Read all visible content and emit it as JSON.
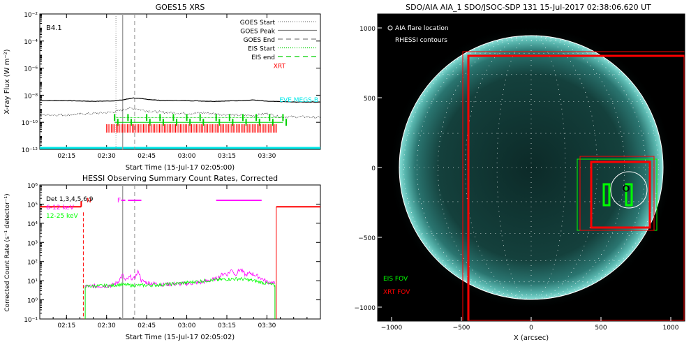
{
  "chart_data": [
    {
      "type": "line",
      "title": "GOES15 XRS",
      "xlabel": "Start Time (15-Jul-17 02:05:00)",
      "ylabel": "X-ray Flux (W m⁻²)",
      "y_scale": "log",
      "ylim_exponents": [
        -12,
        -2
      ],
      "y_ticks": [
        -12,
        -10,
        -8,
        -6,
        -4,
        -2
      ],
      "x_range_minutes": [
        0,
        105
      ],
      "x_ticks": [
        {
          "label": "02:15",
          "m": 10
        },
        {
          "label": "02:30",
          "m": 25
        },
        {
          "label": "02:45",
          "m": 40
        },
        {
          "label": "03:00",
          "m": 55
        },
        {
          "label": "03:15",
          "m": 70
        },
        {
          "label": "03:30",
          "m": 85
        }
      ],
      "annotation": "B4.1",
      "legend": [
        {
          "label": "GOES Start",
          "color": "#808080",
          "style": "dotted"
        },
        {
          "label": "GOES Peak",
          "color": "#808080",
          "style": "solid"
        },
        {
          "label": "GOES End",
          "color": "#808080",
          "style": "dashed"
        },
        {
          "label": "EIS Start",
          "color": "#00d000",
          "style": "dotted"
        },
        {
          "label": "EIS end",
          "color": "#00d000",
          "style": "dashed"
        },
        {
          "label": "XRT",
          "color": "#ff0000",
          "style": "text"
        }
      ],
      "legend_position": "top-right",
      "eve_label": "EVE MEGS-B",
      "series": [
        {
          "name": "GOES long",
          "log_flux": [
            [
              0,
              -8.4
            ],
            [
              10,
              -8.4
            ],
            [
              20,
              -8.45
            ],
            [
              27,
              -8.42
            ],
            [
              31,
              -8.35
            ],
            [
              35,
              -8.2
            ],
            [
              40,
              -8.3
            ],
            [
              45,
              -8.38
            ],
            [
              55,
              -8.4
            ],
            [
              65,
              -8.45
            ],
            [
              75,
              -8.4
            ],
            [
              80,
              -8.35
            ],
            [
              85,
              -8.45
            ],
            [
              95,
              -8.5
            ],
            [
              105,
              -8.5
            ]
          ]
        },
        {
          "name": "GOES short",
          "log_flux": [
            [
              0,
              -9.45
            ],
            [
              10,
              -9.45
            ],
            [
              20,
              -9.35
            ],
            [
              27,
              -9.25
            ],
            [
              31,
              -9.1
            ],
            [
              33,
              -8.95
            ],
            [
              36,
              -9.0
            ],
            [
              40,
              -9.15
            ],
            [
              45,
              -9.25
            ],
            [
              55,
              -9.35
            ],
            [
              62,
              -9.3
            ],
            [
              70,
              -9.45
            ],
            [
              80,
              -9.5
            ],
            [
              85,
              -9.35
            ],
            [
              90,
              -9.6
            ],
            [
              100,
              -9.6
            ],
            [
              105,
              -9.65
            ]
          ]
        }
      ],
      "event_lines_minutes": {
        "goes_start": 28.5,
        "goes_peak": 31.0,
        "goes_end": 35.5
      },
      "eis_tick_minutes": [
        28,
        33,
        40,
        45,
        50,
        55,
        60,
        66,
        71,
        76,
        81,
        86,
        91
      ],
      "xrt_span_minutes": [
        25,
        89
      ]
    },
    {
      "type": "line",
      "title": "HESSI Observing Summary Count Rates, Corrected",
      "xlabel": "Start Time (15-Jul-17 02:05:02)",
      "ylabel": "Corrected Count Rate (s⁻¹ detector⁻¹)",
      "y_scale": "log",
      "ylim_exponents": [
        -1,
        6
      ],
      "y_ticks": [
        -1,
        0,
        1,
        2,
        3,
        4,
        5,
        6
      ],
      "x_range_minutes": [
        0,
        105
      ],
      "x_ticks": [
        {
          "label": "02:15",
          "m": 10
        },
        {
          "label": "02:30",
          "m": 25
        },
        {
          "label": "02:45",
          "m": 40
        },
        {
          "label": "03:00",
          "m": 55
        },
        {
          "label": "03:15",
          "m": 70
        },
        {
          "label": "03:30",
          "m": 85
        }
      ],
      "legend": [
        {
          "label": "Det 1,3,4,5,6,9",
          "color": "#000000"
        },
        {
          "label": "6-12 keV",
          "color": "#ff00ff"
        },
        {
          "label": "12-25 keV",
          "color": "#00ff00"
        }
      ],
      "legend_position": "top-left",
      "markers": {
        "N": "N",
        "F": "F"
      },
      "series": [
        {
          "name": "6-12 keV",
          "log_rate": [
            [
              17,
              0.7
            ],
            [
              27,
              0.75
            ],
            [
              29,
              0.9
            ],
            [
              31,
              1.3
            ],
            [
              32,
              1.0
            ],
            [
              34,
              1.2
            ],
            [
              35,
              1.05
            ],
            [
              37,
              1.5
            ],
            [
              38,
              1.0
            ],
            [
              40,
              0.9
            ],
            [
              46,
              0.8
            ],
            [
              55,
              0.85
            ],
            [
              60,
              0.9
            ],
            [
              66,
              1.1
            ],
            [
              69,
              1.4
            ],
            [
              70,
              1.3
            ],
            [
              72,
              1.6
            ],
            [
              73,
              1.3
            ],
            [
              75,
              1.6
            ],
            [
              77,
              1.3
            ],
            [
              79,
              1.4
            ],
            [
              82,
              1.2
            ],
            [
              85,
              0.95
            ],
            [
              88,
              0.85
            ]
          ]
        },
        {
          "name": "12-25 keV",
          "log_rate": [
            [
              17,
              0.7
            ],
            [
              27,
              0.75
            ],
            [
              30,
              0.8
            ],
            [
              35,
              0.75
            ],
            [
              45,
              0.78
            ],
            [
              55,
              0.9
            ],
            [
              62,
              1.0
            ],
            [
              70,
              1.08
            ],
            [
              75,
              1.1
            ],
            [
              80,
              1.0
            ],
            [
              85,
              0.85
            ],
            [
              88,
              0.75
            ]
          ]
        }
      ],
      "event_lines_minutes": {
        "goes_peak": 31.0,
        "goes_end": 35.5
      }
    },
    {
      "type": "image",
      "title": "SDO/AIA AIA_1 SDO/JSOC-SDP 131 15-Jul-2017 02:38:06.620 UT",
      "xlabel": "X (arcsec)",
      "xlim": [
        -1100,
        1100
      ],
      "ylim": [
        -1100,
        1100
      ],
      "ticks": [
        -1000,
        -500,
        0,
        500,
        1000
      ],
      "legend_top": [
        "AIA flare location",
        "RHESSI contours"
      ],
      "legend_bottom": [
        {
          "label": "EIS FOV",
          "color": "#00ff00"
        },
        {
          "label": "XRT FOV",
          "color": "#ff0000"
        }
      ],
      "xrt_fov_large": [
        -490,
        -1100,
        1100,
        830
      ],
      "xrt_fov_small": [
        -450,
        -1100,
        1100,
        800
      ],
      "inner_fov_small": [
        430,
        -430,
        850,
        40
      ],
      "inner_fov_green": [
        330,
        -450,
        900,
        60
      ],
      "inner_fov_red": [
        350,
        -450,
        880,
        80
      ],
      "flare_center": [
        700,
        -160
      ]
    }
  ]
}
